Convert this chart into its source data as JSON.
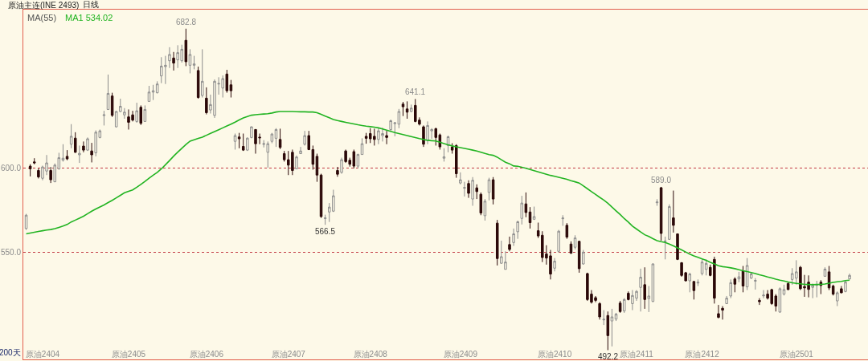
{
  "chart_data": {
    "type": "candlestick",
    "title": "原油主连(INE 2493)",
    "subtitle": "日线",
    "categories": [
      null,
      null,
      null,
      null,
      "原油2404",
      null,
      null,
      null,
      null,
      null,
      null,
      null,
      null,
      null,
      null,
      null,
      null,
      null,
      null,
      null,
      null,
      null,
      null,
      null,
      null,
      "原油2405",
      null,
      null,
      null,
      null,
      null,
      null,
      null,
      null,
      null,
      null,
      null,
      null,
      null,
      null,
      null,
      null,
      null,
      null,
      "原油2406",
      null,
      null,
      null,
      null,
      null,
      null,
      null,
      null,
      null,
      null,
      null,
      null,
      null,
      null,
      null,
      null,
      null,
      null,
      null,
      "原油2407",
      null,
      null,
      null,
      null,
      null,
      null,
      null,
      null,
      null,
      null,
      null,
      null,
      null,
      null,
      null,
      null,
      null,
      null,
      null,
      "原油2408",
      null,
      null,
      null,
      null,
      null,
      null,
      null,
      null,
      null,
      null,
      null,
      null,
      null,
      null,
      null,
      null,
      null,
      null,
      null,
      null,
      null,
      "原油2409",
      null,
      null,
      null,
      null,
      null,
      null,
      null,
      null,
      null,
      null,
      null,
      null,
      null,
      null,
      null,
      null,
      null,
      null,
      null,
      null,
      null,
      null,
      "原油2410",
      null,
      null,
      null,
      null,
      null,
      null,
      null,
      null,
      null,
      null,
      null,
      null,
      null,
      null,
      null,
      null,
      null,
      null,
      null,
      "原油2411",
      null,
      null,
      null,
      null,
      null,
      null,
      null,
      null,
      null,
      null,
      null,
      null,
      null,
      null,
      null,
      "原油2412",
      null,
      null,
      null,
      null,
      null,
      null,
      null,
      null,
      null,
      null,
      null,
      null,
      null,
      null,
      null,
      null,
      null,
      null,
      null,
      null,
      null,
      null,
      "原油2501",
      null,
      null,
      null,
      null,
      null,
      null,
      null,
      null,
      null,
      null,
      null,
      null,
      null
    ],
    "ohlc": [
      [
        564.3,
        573,
        563.5,
        572.2
      ],
      [
        601.3,
        602.4,
        595.2,
        599.7
      ],
      [
        603.8,
        606,
        602.4,
        603.2
      ],
      [
        598.7,
        600,
        594,
        594.9
      ],
      [
        594.1,
        601.6,
        592.9,
        600.8
      ],
      [
        598.4,
        607.9,
        596,
        603.2
      ],
      [
        598.7,
        600.8,
        591.3,
        593.2
      ],
      [
        592,
        602.9,
        591.8,
        601.9
      ],
      [
        599.7,
        609.2,
        599.2,
        606.3
      ],
      [
        604.8,
        614.3,
        604,
        606
      ],
      [
        607.1,
        610.8,
        604.8,
        605.6
      ],
      [
        614.3,
        626.2,
        611.9,
        619
      ],
      [
        617.9,
        621.4,
        609.2,
        609.5
      ],
      [
        608,
        613.5,
        603.2,
        608.9
      ],
      [
        613.2,
        615.9,
        609.5,
        610.8
      ],
      [
        610.8,
        618.3,
        610.3,
        617.5
      ],
      [
        610.3,
        615.1,
        603.5,
        608
      ],
      [
        609.2,
        622.5,
        607.1,
        621.4
      ],
      [
        618.3,
        623,
        617.8,
        622.2
      ],
      [
        631.3,
        634.1,
        625.4,
        631.7
      ],
      [
        634.9,
        655.6,
        634.6,
        644.4
      ],
      [
        642.9,
        644.8,
        630.5,
        631.4
      ],
      [
        624.6,
        634.1,
        624.3,
        633.7
      ],
      [
        633.7,
        641.3,
        633.3,
        636.8
      ],
      [
        631.7,
        635.7,
        629.4,
        633.3
      ],
      [
        630.5,
        634.9,
        623,
        627.3
      ],
      [
        631.7,
        634.1,
        627.8,
        628.6
      ],
      [
        627.8,
        638.9,
        627,
        634.1
      ],
      [
        636.2,
        637.3,
        625.7,
        626.7
      ],
      [
        627.8,
        637.3,
        627.5,
        634.9
      ],
      [
        639.7,
        648.9,
        639.4,
        645.2
      ],
      [
        645.2,
        649.5,
        640.5,
        646
      ],
      [
        644.8,
        651.6,
        644.4,
        650
      ],
      [
        654.8,
        665.9,
        650.5,
        660.6
      ],
      [
        660.3,
        666.7,
        650,
        661.1
      ],
      [
        663.8,
        671.8,
        659.5,
        667.5
      ],
      [
        665.4,
        669,
        658,
        662.4
      ],
      [
        664.3,
        673,
        659.5,
        668.6
      ],
      [
        663.8,
        673.3,
        662.7,
        670.6
      ],
      [
        675.9,
        682.8,
        660.6,
        663.2
      ],
      [
        661.1,
        670.6,
        656.3,
        667.5
      ],
      [
        661.1,
        666.7,
        658.7,
        661.9
      ],
      [
        658,
        660.3,
        641.3,
        642
      ],
      [
        643.2,
        670.6,
        642,
        651.6
      ],
      [
        641.6,
        648,
        632,
        633
      ],
      [
        634.6,
        643.7,
        632.5,
        637.8
      ],
      [
        631.4,
        652.7,
        629.9,
        651.6
      ],
      [
        650,
        654,
        643.7,
        650.3
      ],
      [
        647.6,
        655.1,
        642,
        653.2
      ],
      [
        655.9,
        658.4,
        644.8,
        646
      ],
      [
        649.5,
        652.4,
        642,
        646
      ],
      [
        616,
        620.6,
        611.1,
        619.4
      ],
      [
        618.6,
        621,
        611.9,
        617.5
      ],
      [
        613,
        620.6,
        610.3,
        610.8
      ],
      [
        610.8,
        618.3,
        610.3,
        617.9
      ],
      [
        618.3,
        624.8,
        617.8,
        624.6
      ],
      [
        623,
        623.3,
        608.7,
        614.6
      ],
      [
        618.5,
        620.6,
        614.3,
        618.1
      ],
      [
        614.2,
        616.7,
        612.4,
        614.6
      ],
      [
        609.5,
        615.9,
        600.3,
        614.6
      ],
      [
        616,
        621,
        614.9,
        620.3
      ],
      [
        617.8,
        623.8,
        612.7,
        623
      ],
      [
        617.1,
        623.5,
        611.4,
        612.4
      ],
      [
        608.7,
        610.3,
        604,
        605.1
      ],
      [
        605.1,
        610.3,
        596,
        601.9
      ],
      [
        609.5,
        611.1,
        596,
        598.7
      ],
      [
        599.7,
        607.6,
        599.5,
        606.7
      ],
      [
        608.7,
        612.7,
        608.5,
        610.3
      ],
      [
        614.3,
        622.2,
        613.5,
        619.4
      ],
      [
        619.4,
        622.2,
        610.8,
        611.1
      ],
      [
        611.1,
        613.5,
        599.2,
        602.4
      ],
      [
        607.1,
        608.7,
        592,
        596
      ],
      [
        596,
        596.8,
        570.6,
        571.4
      ],
      [
        570.2,
        572.5,
        566.5,
        570.6
      ],
      [
        574.1,
        579.4,
        568.2,
        577
      ],
      [
        574.6,
        587.3,
        574.1,
        583.7
      ],
      [
        598.7,
        600.8,
        595,
        596.5
      ],
      [
        597.6,
        606.3,
        596.8,
        605.1
      ],
      [
        610.3,
        611.1,
        603.2,
        604
      ],
      [
        604.8,
        606.3,
        601,
        602.4
      ],
      [
        609.9,
        611.1,
        600,
        601.3
      ],
      [
        601.3,
        608.7,
        600,
        608.2
      ],
      [
        608.2,
        617.8,
        608,
        614.6
      ],
      [
        619,
        621,
        614.6,
        617.8
      ],
      [
        620.6,
        623.8,
        615,
        617.5
      ],
      [
        619,
        623.5,
        613.5,
        617.1
      ],
      [
        617.1,
        623.8,
        614.3,
        622.2
      ],
      [
        619.4,
        624.1,
        615.9,
        620.6
      ],
      [
        619.4,
        622.2,
        614.3,
        618.3
      ],
      [
        623,
        628.9,
        622.2,
        628.2
      ],
      [
        626.5,
        627.3,
        619,
        627
      ],
      [
        626.2,
        635.2,
        623.8,
        633.7
      ],
      [
        638.1,
        639.4,
        631,
        636.5
      ],
      [
        635.2,
        639.7,
        629.4,
        633.3
      ],
      [
        633.7,
        637.8,
        633.3,
        635.7
      ],
      [
        637.3,
        641.1,
        627.3,
        627.8
      ],
      [
        628.6,
        630.2,
        625.4,
        626.2
      ],
      [
        624.6,
        625.4,
        612.7,
        614.3
      ],
      [
        616.7,
        627.8,
        614.3,
        625.4
      ],
      [
        622.2,
        623.8,
        617.5,
        623
      ],
      [
        623.5,
        624.1,
        613.5,
        618.3
      ],
      [
        619.8,
        620.6,
        611.1,
        612.7
      ],
      [
        606,
        611.9,
        604,
        606.8
      ],
      [
        613.5,
        619.4,
        609.5,
        618.7
      ],
      [
        612.7,
        614.9,
        608.7,
        610.8
      ],
      [
        613.5,
        614.3,
        594.4,
        596.8
      ],
      [
        591.3,
        597.6,
        590.5,
        593.2
      ],
      [
        588.2,
        592,
        583.3,
        588.6
      ],
      [
        591,
        592.9,
        582.5,
        585.2
      ],
      [
        581.8,
        594.8,
        577.8,
        592.9
      ],
      [
        588.4,
        590.5,
        581.8,
        586.2
      ],
      [
        584.6,
        585.7,
        572.2,
        573.5
      ],
      [
        571.9,
        581.8,
        569,
        580.5
      ],
      [
        585.7,
        594.4,
        581,
        593.2
      ],
      [
        593.2,
        594.8,
        578.6,
        581.8
      ],
      [
        567.5,
        569.4,
        542.4,
        546.5
      ],
      [
        543.7,
        557.1,
        543.5,
        547.6
      ],
      [
        540.1,
        550.8,
        540,
        544.4
      ],
      [
        554.8,
        559.5,
        550.8,
        551.9
      ],
      [
        556,
        564.3,
        554,
        561.1
      ],
      [
        562.4,
        569,
        558.2,
        568.3
      ],
      [
        570.3,
        583.7,
        566.7,
        579.4
      ],
      [
        578.9,
        585.7,
        571,
        573.8
      ],
      [
        574.1,
        577,
        564.3,
        567.8
      ],
      [
        569.8,
        577.3,
        569.4,
        571.4
      ],
      [
        563,
        567.8,
        558.7,
        559.9
      ],
      [
        560.3,
        562.7,
        544.4,
        547.1
      ],
      [
        549.2,
        554.4,
        542.9,
        546.8
      ],
      [
        548.1,
        551.6,
        534.1,
        537.3
      ],
      [
        540.8,
        546.8,
        538.9,
        544.9
      ],
      [
        550.8,
        563.5,
        550,
        562.7
      ],
      [
        570.1,
        572.2,
        565.9,
        570.5
      ],
      [
        566.2,
        567.5,
        558.2,
        559.2
      ],
      [
        555.1,
        556.7,
        549.2,
        549.7
      ],
      [
        553.2,
        560.3,
        552,
        558.7
      ],
      [
        556.7,
        557.1,
        538.1,
        540.5
      ],
      [
        543.3,
        551.6,
        542.9,
        550.3
      ],
      [
        537.6,
        538.1,
        521.4,
        522.2
      ],
      [
        525.4,
        527.8,
        519.8,
        520.6
      ],
      [
        523.3,
        524.3,
        520.6,
        521.7
      ],
      [
        519.8,
        520.6,
        510.3,
        511.9
      ],
      [
        510.1,
        515.9,
        507.1,
        510.5
      ],
      [
        512.7,
        515.1,
        492.2,
        500.8
      ],
      [
        509.5,
        516.7,
        494.4,
        511.9
      ],
      [
        510.6,
        514.3,
        509.5,
        513.5
      ],
      [
        520.1,
        521.4,
        514.3,
        515.1
      ],
      [
        515.4,
        523,
        514.3,
        522.2
      ],
      [
        525.9,
        527,
        521.7,
        522.2
      ],
      [
        519.8,
        527.8,
        515.9,
        524.6
      ],
      [
        523,
        527.8,
        521.4,
        527
      ],
      [
        529.4,
        540.5,
        515.1,
        535.4
      ],
      [
        531,
        541.3,
        516.7,
        522.2
      ],
      [
        522.7,
        530.2,
        514.8,
        524.3
      ],
      [
        521.1,
        543.6,
        520.6,
        543.3
      ],
      [
        579.6,
        581.7,
        577.8,
        580
      ],
      [
        588.5,
        589,
        557.1,
        561.4
      ],
      [
        556.5,
        559.5,
        546,
        556.9
      ],
      [
        557.9,
        578.6,
        557.6,
        577.3
      ],
      [
        570.6,
        586.8,
        561.9,
        566.2
      ],
      [
        561.1,
        561.4,
        545.6,
        546
      ],
      [
        544,
        544.4,
        535.7,
        536.5
      ],
      [
        538.1,
        538.6,
        532.9,
        533.3
      ],
      [
        533.3,
        538.1,
        526.5,
        537.3
      ],
      [
        532.9,
        533.3,
        522.2,
        527.5
      ],
      [
        532,
        534.1,
        530.2,
        532.4
      ],
      [
        537.6,
        546,
        536.5,
        544.4
      ],
      [
        540.1,
        546,
        536.5,
        543.6
      ],
      [
        541.3,
        542.9,
        536,
        536.5
      ],
      [
        546,
        547.6,
        519.8,
        523
      ],
      [
        513.8,
        519,
        511.1,
        511.6
      ],
      [
        517,
        518.3,
        510.3,
        515.9
      ],
      [
        519.8,
        524.3,
        519.5,
        523
      ],
      [
        524.3,
        534.1,
        523,
        532.2
      ],
      [
        534.4,
        535.4,
        526.5,
        531.3
      ],
      [
        534.4,
        538.6,
        532.5,
        535.7
      ],
      [
        539.2,
        542.1,
        526.5,
        530.2
      ],
      [
        529.7,
        546.8,
        527.8,
        542.4
      ],
      [
        534.9,
        538.1,
        534.4,
        537.3
      ],
      [
        533.1,
        534.9,
        528.1,
        533.5
      ],
      [
        521.7,
        523,
        519,
        520.9
      ],
      [
        524.4,
        527.8,
        523,
        524.8
      ],
      [
        525.4,
        527.8,
        522.2,
        523
      ],
      [
        528.1,
        528.6,
        519,
        519.8
      ],
      [
        524.3,
        525.4,
        515.1,
        518.3
      ],
      [
        514.8,
        529.4,
        514.3,
        528.6
      ],
      [
        525.4,
        531,
        524.6,
        528.1
      ],
      [
        531.7,
        532.5,
        527.8,
        528.1
      ],
      [
        534.1,
        540.8,
        531,
        537.6
      ],
      [
        534.9,
        545.5,
        531,
        538.6
      ],
      [
        541.3,
        542.1,
        527.8,
        528.6
      ],
      [
        529.9,
        536.8,
        523.8,
        529.1
      ],
      [
        532.5,
        536.5,
        523.5,
        528.2
      ],
      [
        529.4,
        531.7,
        523,
        530.5
      ],
      [
        530.6,
        533.3,
        523.5,
        531
      ],
      [
        532.5,
        533.7,
        525.4,
        530.5
      ],
      [
        536,
        541.3,
        535.7,
        540.2
      ],
      [
        538.6,
        542.1,
        527.8,
        529.1
      ],
      [
        530.2,
        531,
        524.6,
        525.4
      ],
      [
        521.4,
        527,
        518.3,
        526.2
      ],
      [
        528.6,
        530.2,
        525.9,
        526.2
      ],
      [
        527,
        533.3,
        526.5,
        532.5
      ],
      [
        534.4,
        537.6,
        534.1,
        536.5
      ]
    ],
    "colors": [
      "#8c8c8c",
      "#2b0808",
      "#2b0808",
      "#2b0808",
      "#8c8c8c",
      "#8c8c8c",
      "#2b0808",
      "#8c8c8c",
      "#8c8c8c",
      "#8c8c8c",
      "#2b0808",
      "#8c8c8c",
      "#2b0808",
      "#8c8c8c",
      "#2b0808",
      "#8c8c8c",
      "#2b0808",
      "#8c8c8c",
      "#8c8c8c",
      "#8c8c8c",
      "#8c8c8c",
      "#2b0808",
      "#8c8c8c",
      "#8c8c8c",
      "#8c8c8c",
      "#2b0808",
      "#2b0808",
      "#8c8c8c",
      "#2b0808",
      "#8c8c8c",
      "#8c8c8c",
      "#8c8c8c",
      "#8c8c8c",
      "#8c8c8c",
      "#8c8c8c",
      "#8c8c8c",
      "#2b0808",
      "#8c8c8c",
      "#8c8c8c",
      "#2b0808",
      "#8c8c8c",
      "#8c8c8c",
      "#2b0808",
      "#8c8c8c",
      "#2b0808",
      "#8c8c8c",
      "#8c8c8c",
      "#8c8c8c",
      "#8c8c8c",
      "#2b0808",
      "#2b0808",
      "#8c8c8c",
      "#2b0808",
      "#2b0808",
      "#8c8c8c",
      "#8c8c8c",
      "#2b0808",
      "#2b0808",
      "#8c8c8c",
      "#8c8c8c",
      "#8c8c8c",
      "#8c8c8c",
      "#2b0808",
      "#2b0808",
      "#2b0808",
      "#2b0808",
      "#8c8c8c",
      "#8c8c8c",
      "#8c8c8c",
      "#2b0808",
      "#2b0808",
      "#2b0808",
      "#2b0808",
      "#8c8c8c",
      "#8c8c8c",
      "#8c8c8c",
      "#2b0808",
      "#8c8c8c",
      "#2b0808",
      "#2b0808",
      "#2b0808",
      "#8c8c8c",
      "#8c8c8c",
      "#2b0808",
      "#2b0808",
      "#2b0808",
      "#8c8c8c",
      "#8c8c8c",
      "#2b0808",
      "#8c8c8c",
      "#8c8c8c",
      "#8c8c8c",
      "#2b0808",
      "#2b0808",
      "#8c8c8c",
      "#2b0808",
      "#2b0808",
      "#2b0808",
      "#8c8c8c",
      "#8c8c8c",
      "#2b0808",
      "#2b0808",
      "#8c8c8c",
      "#8c8c8c",
      "#2b0808",
      "#2b0808",
      "#8c8c8c",
      "#8c8c8c",
      "#2b0808",
      "#8c8c8c",
      "#2b0808",
      "#2b0808",
      "#8c8c8c",
      "#8c8c8c",
      "#2b0808",
      "#2b0808",
      "#8c8c8c",
      "#8c8c8c",
      "#2b0808",
      "#8c8c8c",
      "#8c8c8c",
      "#8c8c8c",
      "#2b0808",
      "#2b0808",
      "#8c8c8c",
      "#2b0808",
      "#2b0808",
      "#2b0808",
      "#2b0808",
      "#8c8c8c",
      "#8c8c8c",
      "#8c8c8c",
      "#2b0808",
      "#2b0808",
      "#8c8c8c",
      "#2b0808",
      "#8c8c8c",
      "#2b0808",
      "#2b0808",
      "#2b0808",
      "#2b0808",
      "#8c8c8c",
      "#2b0808",
      "#8c8c8c",
      "#8c8c8c",
      "#2b0808",
      "#8c8c8c",
      "#2b0808",
      "#8c8c8c",
      "#8c8c8c",
      "#8c8c8c",
      "#2b0808",
      "#8c8c8c",
      "#8c8c8c",
      "#8c8c8c",
      "#2b0808",
      "#8c8c8c",
      "#8c8c8c",
      "#2b0808",
      "#2b0808",
      "#2b0808",
      "#2b0808",
      "#8c8c8c",
      "#2b0808",
      "#8c8c8c",
      "#8c8c8c",
      "#8c8c8c",
      "#2b0808",
      "#2b0808",
      "#2b0808",
      "#2b0808",
      "#8c8c8c",
      "#8c8c8c",
      "#2b0808",
      "#8c8c8c",
      "#2b0808",
      "#8c8c8c",
      "#8c8c8c",
      "#8c8c8c",
      "#2b0808",
      "#8c8c8c",
      "#2b0808",
      "#2b0808",
      "#2b0808",
      "#8c8c8c",
      "#8c8c8c",
      "#2b0808",
      "#8c8c8c",
      "#8c8c8c",
      "#2b0808",
      "#2b0808",
      "#2b0808",
      "#8c8c8c",
      "#8c8c8c",
      "#2b0808",
      "#8c8c8c",
      "#2b0808",
      "#2b0808",
      "#8c8c8c",
      "#2b0808",
      "#8c8c8c",
      "#8c8c8c"
    ],
    "series": [
      {
        "type": "line",
        "name": "MA1 534.02",
        "color": "#22b422",
        "values": [
          561.1,
          561.6,
          562.1,
          562.6,
          563.0,
          563.4,
          563.7,
          564.2,
          565.0,
          565.8,
          566.7,
          568.2,
          569.3,
          570.4,
          571.6,
          573.1,
          574.6,
          575.9,
          577.1,
          578.3,
          579.7,
          581.0,
          582.5,
          584.0,
          585.5,
          586.4,
          587.2,
          588.8,
          590.5,
          592.2,
          594.1,
          595.9,
          597.6,
          599.7,
          602.1,
          604.6,
          607.2,
          609.6,
          611.9,
          614.1,
          616.1,
          616.9,
          617.7,
          618.5,
          619.6,
          620.7,
          621.8,
          622.9,
          624.0,
          625.1,
          626.2,
          627.4,
          628.7,
          629.9,
          630.7,
          631.5,
          631.8,
          632.0,
          632.2,
          632.4,
          632.8,
          633.4,
          633.7,
          633.7,
          633.7,
          633.7,
          633.6,
          633.5,
          633.5,
          633.4,
          633.4,
          633.0,
          632.0,
          631.0,
          630.0,
          628.9,
          628.3,
          627.8,
          627.3,
          626.8,
          626.3,
          625.8,
          625.4,
          625.0,
          624.7,
          624.4,
          624.0,
          623.3,
          622.6,
          621.9,
          621.2,
          620.6,
          620.0,
          619.4,
          618.8,
          618.2,
          617.6,
          617.1,
          616.6,
          616.4,
          616.2,
          615.5,
          614.7,
          613.9,
          613.3,
          612.8,
          612.3,
          611.8,
          611.3,
          610.8,
          610.3,
          609.6,
          608.8,
          608.1,
          607.7,
          606.6,
          605.1,
          603.6,
          602.7,
          601.4,
          601.2,
          600.6,
          600.0,
          599.3,
          598.6,
          597.9,
          597.2,
          596.5,
          595.8,
          595.3,
          594.7,
          594.1,
          593.5,
          592.7,
          592.0,
          591.3,
          589.6,
          587.9,
          586.2,
          584.5,
          582.8,
          581.2,
          579.3,
          577.0,
          574.8,
          572.6,
          570.2,
          568.1,
          565.7,
          564.0,
          562.3,
          560.6,
          559.6,
          558.3,
          557.1,
          556.5,
          556.0,
          555.1,
          554.0,
          552.8,
          551.6,
          550.4,
          549.1,
          548.1,
          547.2,
          546.3,
          545.4,
          544.3,
          543.3,
          542.2,
          541.7,
          541.4,
          541.0,
          540.5,
          539.9,
          539.3,
          538.8,
          538.2,
          537.6,
          536.9,
          536.3,
          535.6,
          535.0,
          534.3,
          533.7,
          533.2,
          532.6,
          532.1,
          531.8,
          531.5,
          531.2,
          531.1,
          531.0,
          531.1,
          531.2,
          531.4,
          531.9,
          532.4,
          532.7,
          533.0,
          533.4,
          533.7
        ]
      }
    ],
    "legend": "top left",
    "legend_title": "MA(55)",
    "ylim": [
      486.7,
      694.1
    ],
    "yticks": [
      {
        "value": 600,
        "label": "600.0"
      },
      {
        "value": 550,
        "label": "550.0"
      }
    ],
    "grid": "y",
    "annotations": [
      {
        "text": "682.8",
        "y": 682.8
      },
      {
        "text": "566.5",
        "y": 566.5
      },
      {
        "text": "641.1",
        "y": 641.1
      },
      {
        "text": "492.2",
        "y": 492.2
      },
      {
        "text": "589.0",
        "y": 589.0
      },
      "200天"
    ]
  }
}
